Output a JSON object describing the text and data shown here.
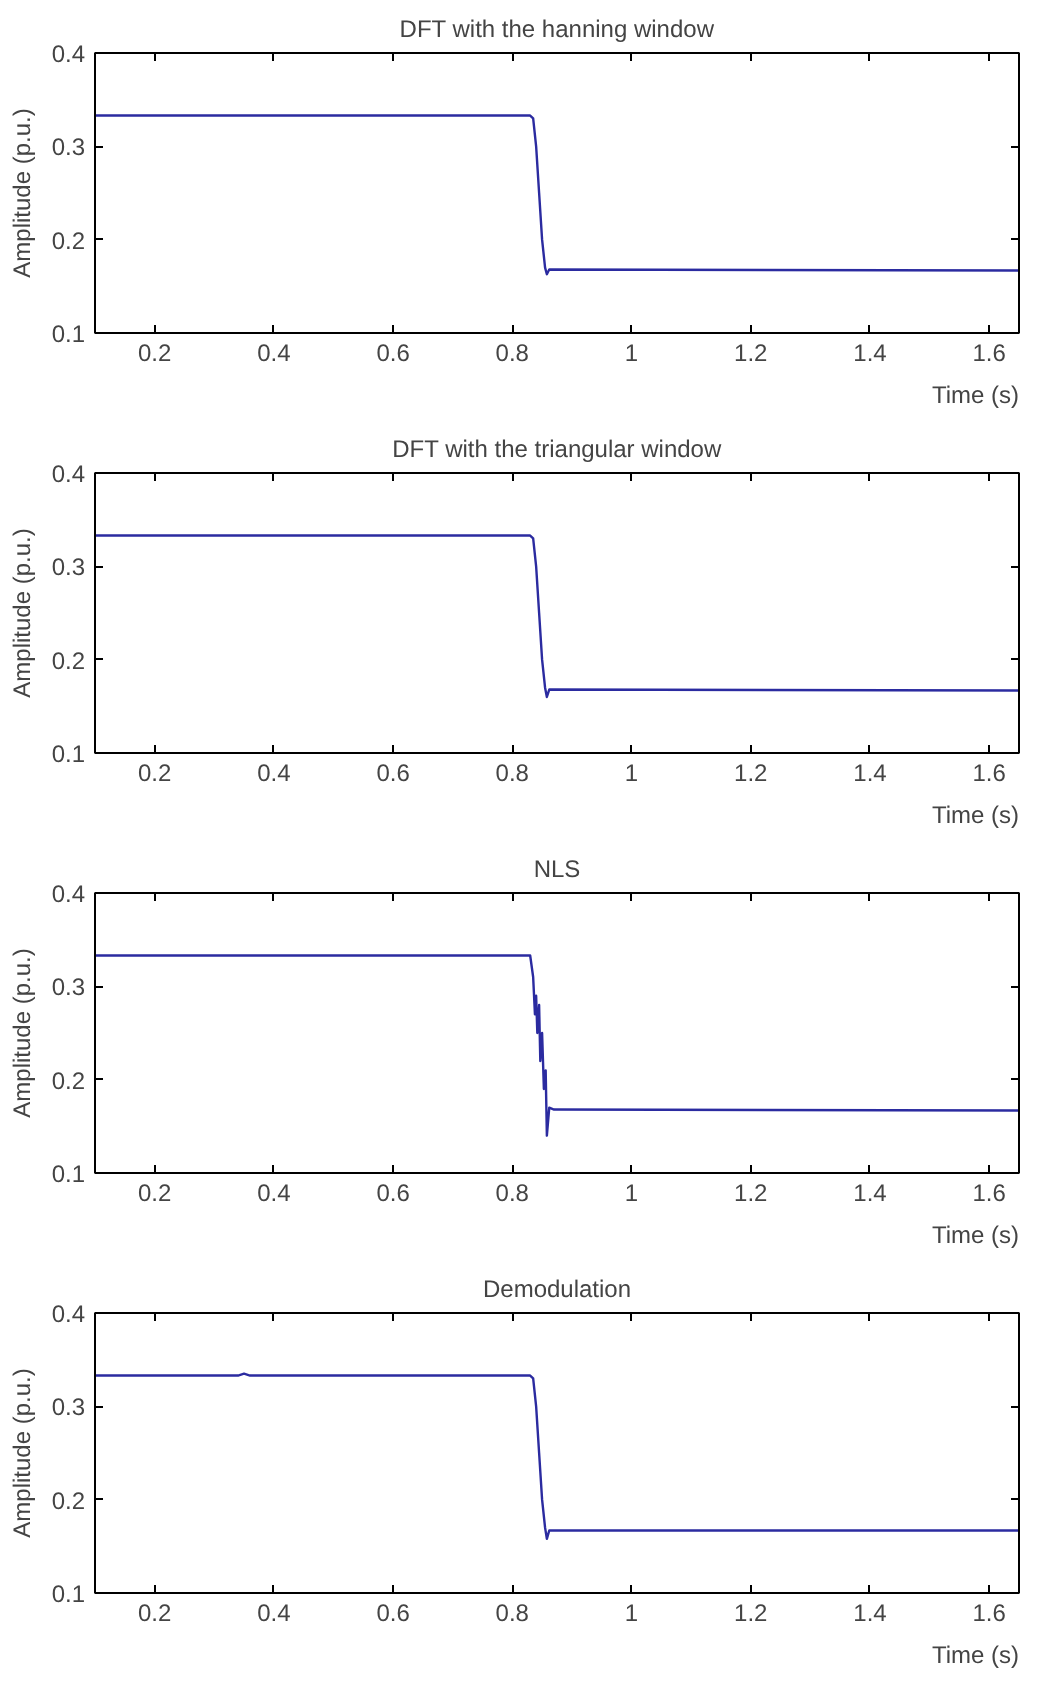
{
  "chart_data": [
    {
      "type": "line",
      "title": "DFT with the hanning window",
      "xlabel": "Time (s)",
      "ylabel": "Amplitude (p.u.)",
      "xlim": [
        0.1,
        1.65
      ],
      "ylim": [
        0.1,
        0.4
      ],
      "xticks": [
        0.2,
        0.4,
        0.6,
        0.8,
        1,
        1.2,
        1.4,
        1.6
      ],
      "yticks": [
        0.1,
        0.2,
        0.3,
        0.4
      ],
      "grid": false,
      "series": [
        {
          "color": "#2b2ba0",
          "x": [
            0.1,
            0.83,
            0.835,
            0.84,
            0.845,
            0.85,
            0.855,
            0.858,
            0.862,
            1.65
          ],
          "values": [
            0.333,
            0.333,
            0.33,
            0.3,
            0.25,
            0.2,
            0.17,
            0.163,
            0.168,
            0.167
          ]
        }
      ]
    },
    {
      "type": "line",
      "title": "DFT with the triangular window",
      "xlabel": "Time (s)",
      "ylabel": "Amplitude (p.u.)",
      "xlim": [
        0.1,
        1.65
      ],
      "ylim": [
        0.1,
        0.4
      ],
      "xticks": [
        0.2,
        0.4,
        0.6,
        0.8,
        1,
        1.2,
        1.4,
        1.6
      ],
      "yticks": [
        0.1,
        0.2,
        0.3,
        0.4
      ],
      "grid": false,
      "series": [
        {
          "color": "#2b2ba0",
          "x": [
            0.1,
            0.83,
            0.835,
            0.84,
            0.845,
            0.85,
            0.855,
            0.858,
            0.862,
            1.65
          ],
          "values": [
            0.333,
            0.333,
            0.33,
            0.3,
            0.25,
            0.2,
            0.17,
            0.16,
            0.168,
            0.167
          ]
        }
      ]
    },
    {
      "type": "line",
      "title": "NLS",
      "xlabel": "Time (s)",
      "ylabel": "Amplitude (p.u.)",
      "xlim": [
        0.1,
        1.65
      ],
      "ylim": [
        0.1,
        0.4
      ],
      "xticks": [
        0.2,
        0.4,
        0.6,
        0.8,
        1,
        1.2,
        1.4,
        1.6
      ],
      "yticks": [
        0.1,
        0.2,
        0.3,
        0.4
      ],
      "grid": false,
      "series": [
        {
          "color": "#2b2ba0",
          "x": [
            0.1,
            0.83,
            0.835,
            0.838,
            0.84,
            0.842,
            0.845,
            0.847,
            0.85,
            0.853,
            0.856,
            0.858,
            0.862,
            0.87,
            1.65
          ],
          "values": [
            0.333,
            0.333,
            0.31,
            0.27,
            0.29,
            0.25,
            0.28,
            0.22,
            0.25,
            0.19,
            0.21,
            0.14,
            0.17,
            0.168,
            0.167
          ]
        }
      ]
    },
    {
      "type": "line",
      "title": "Demodulation",
      "xlabel": "Time (s)",
      "ylabel": "Amplitude (p.u.)",
      "xlim": [
        0.1,
        1.65
      ],
      "ylim": [
        0.1,
        0.4
      ],
      "xticks": [
        0.2,
        0.4,
        0.6,
        0.8,
        1,
        1.2,
        1.4,
        1.6
      ],
      "yticks": [
        0.1,
        0.2,
        0.3,
        0.4
      ],
      "grid": false,
      "series": [
        {
          "color": "#2b2ba0",
          "x": [
            0.1,
            0.34,
            0.35,
            0.36,
            0.83,
            0.835,
            0.84,
            0.845,
            0.85,
            0.855,
            0.858,
            0.862,
            1.65
          ],
          "values": [
            0.333,
            0.333,
            0.335,
            0.333,
            0.333,
            0.33,
            0.3,
            0.25,
            0.2,
            0.17,
            0.158,
            0.167,
            0.167
          ]
        }
      ]
    }
  ]
}
